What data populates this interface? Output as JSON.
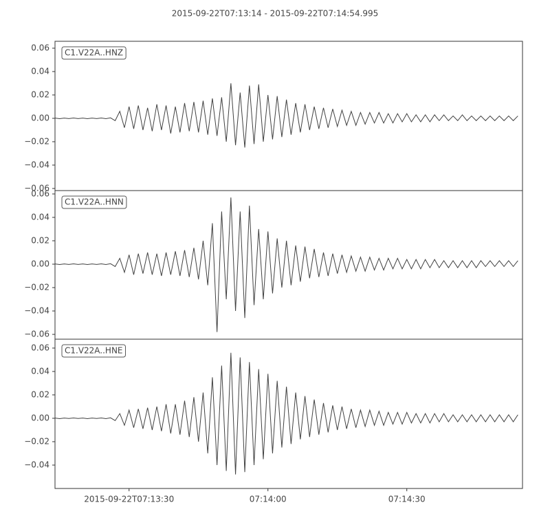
{
  "title": "2015-09-22T07:13:14  -  2015-09-22T07:14:54.995",
  "chart_data": [
    {
      "type": "line",
      "legend": "upper left",
      "x": [
        0,
        1,
        2,
        3,
        4,
        5,
        6,
        7,
        8,
        9,
        10,
        11,
        12,
        13,
        14,
        15,
        16,
        17,
        18,
        19,
        20,
        21,
        22,
        23,
        24,
        25,
        26,
        27,
        28,
        29,
        30,
        31,
        32,
        33,
        34,
        35,
        36,
        37,
        38,
        39,
        40,
        41,
        42,
        43,
        44,
        45,
        46,
        47,
        48,
        49,
        50,
        51,
        52,
        53,
        54,
        55,
        56,
        57,
        58,
        59,
        60,
        61,
        62,
        63,
        64,
        65,
        66,
        67,
        68,
        69,
        70,
        71,
        72,
        73,
        74,
        75,
        76,
        77,
        78,
        79,
        80,
        81,
        82,
        83,
        84,
        85,
        86,
        87,
        88,
        89,
        90,
        91,
        92,
        93,
        94,
        95,
        96,
        97,
        98,
        99,
        100
      ],
      "series": [
        {
          "name": "C1.V22A..HNZ",
          "color": "#404040",
          "values": [
            0.0002,
            -0.0003,
            0.0002,
            -0.0002,
            0.0003,
            -0.0002,
            0.0002,
            -0.0003,
            0.0002,
            -0.0002,
            0.0003,
            -0.0003,
            0.0004,
            -0.002,
            0.006,
            -0.008,
            0.01,
            -0.009,
            0.011,
            -0.01,
            0.009,
            -0.011,
            0.012,
            -0.01,
            0.011,
            -0.013,
            0.01,
            -0.012,
            0.013,
            -0.011,
            0.014,
            -0.012,
            0.015,
            -0.014,
            0.017,
            -0.015,
            0.018,
            -0.02,
            0.03,
            -0.023,
            0.022,
            -0.025,
            0.028,
            -0.022,
            0.029,
            -0.02,
            0.02,
            -0.018,
            0.019,
            -0.016,
            0.016,
            -0.014,
            0.013,
            -0.012,
            0.012,
            -0.01,
            0.01,
            -0.009,
            0.009,
            -0.008,
            0.008,
            -0.007,
            0.007,
            -0.006,
            0.006,
            -0.006,
            0.005,
            -0.005,
            0.005,
            -0.004,
            0.005,
            -0.004,
            0.004,
            -0.004,
            0.004,
            -0.003,
            0.004,
            -0.003,
            0.003,
            -0.003,
            0.003,
            -0.003,
            0.003,
            -0.002,
            0.003,
            -0.002,
            0.002,
            -0.002,
            0.003,
            -0.002,
            0.002,
            -0.002,
            0.002,
            -0.002,
            0.002,
            -0.002,
            0.002,
            -0.002,
            0.002,
            -0.002,
            0.002
          ]
        }
      ],
      "xlim": [
        0,
        100.995
      ],
      "ylim": [
        -0.0618,
        0.0659
      ],
      "yticks": [
        {
          "value": -0.06,
          "label": "−0.06"
        },
        {
          "value": -0.04,
          "label": "−0.04"
        },
        {
          "value": -0.02,
          "label": "−0.02"
        },
        {
          "value": 0,
          "label": "0.00"
        },
        0.02,
        0.04,
        0.06
      ]
    },
    {
      "type": "line",
      "legend": "upper left",
      "x": [
        0,
        1,
        2,
        3,
        4,
        5,
        6,
        7,
        8,
        9,
        10,
        11,
        12,
        13,
        14,
        15,
        16,
        17,
        18,
        19,
        20,
        21,
        22,
        23,
        24,
        25,
        26,
        27,
        28,
        29,
        30,
        31,
        32,
        33,
        34,
        35,
        36,
        37,
        38,
        39,
        40,
        41,
        42,
        43,
        44,
        45,
        46,
        47,
        48,
        49,
        50,
        51,
        52,
        53,
        54,
        55,
        56,
        57,
        58,
        59,
        60,
        61,
        62,
        63,
        64,
        65,
        66,
        67,
        68,
        69,
        70,
        71,
        72,
        73,
        74,
        75,
        76,
        77,
        78,
        79,
        80,
        81,
        82,
        83,
        84,
        85,
        86,
        87,
        88,
        89,
        90,
        91,
        92,
        93,
        94,
        95,
        96,
        97,
        98,
        99,
        100
      ],
      "series": [
        {
          "name": "C1.V22A..HNN",
          "color": "#404040",
          "values": [
            0.0002,
            -0.0003,
            0.0002,
            -0.0002,
            0.0003,
            -0.0002,
            0.0002,
            -0.0003,
            0.0002,
            -0.0002,
            0.0003,
            -0.0003,
            0.0004,
            -0.002,
            0.005,
            -0.007,
            0.008,
            -0.009,
            0.009,
            -0.008,
            0.01,
            -0.009,
            0.009,
            -0.01,
            0.01,
            -0.009,
            0.011,
            -0.01,
            0.012,
            -0.011,
            0.014,
            -0.013,
            0.02,
            -0.018,
            0.035,
            -0.058,
            0.045,
            -0.03,
            0.057,
            -0.04,
            0.045,
            -0.046,
            0.05,
            -0.035,
            0.03,
            -0.03,
            0.028,
            -0.025,
            0.022,
            -0.02,
            0.02,
            -0.018,
            0.016,
            -0.015,
            0.015,
            -0.012,
            0.013,
            -0.011,
            0.01,
            -0.01,
            0.009,
            -0.008,
            0.008,
            -0.007,
            0.007,
            -0.006,
            0.006,
            -0.006,
            0.006,
            -0.005,
            0.005,
            -0.005,
            0.005,
            -0.004,
            0.005,
            -0.004,
            0.004,
            -0.004,
            0.004,
            -0.004,
            0.004,
            -0.003,
            0.004,
            -0.003,
            0.003,
            -0.003,
            0.003,
            -0.003,
            0.003,
            -0.003,
            0.003,
            -0.003,
            0.003,
            -0.002,
            0.003,
            -0.002,
            0.003,
            -0.002,
            0.003,
            -0.002,
            0.003
          ]
        }
      ],
      "xlim": [
        0,
        100.995
      ],
      "ylim": [
        -0.0641,
        0.0629
      ],
      "yticks": [
        {
          "value": -0.06,
          "label": "−0.06"
        },
        {
          "value": -0.04,
          "label": "−0.04"
        },
        {
          "value": -0.02,
          "label": "−0.02"
        },
        {
          "value": 0,
          "label": "0.00"
        },
        0.02,
        0.04,
        0.06
      ]
    },
    {
      "type": "line",
      "legend": "upper left",
      "x": [
        0,
        1,
        2,
        3,
        4,
        5,
        6,
        7,
        8,
        9,
        10,
        11,
        12,
        13,
        14,
        15,
        16,
        17,
        18,
        19,
        20,
        21,
        22,
        23,
        24,
        25,
        26,
        27,
        28,
        29,
        30,
        31,
        32,
        33,
        34,
        35,
        36,
        37,
        38,
        39,
        40,
        41,
        42,
        43,
        44,
        45,
        46,
        47,
        48,
        49,
        50,
        51,
        52,
        53,
        54,
        55,
        56,
        57,
        58,
        59,
        60,
        61,
        62,
        63,
        64,
        65,
        66,
        67,
        68,
        69,
        70,
        71,
        72,
        73,
        74,
        75,
        76,
        77,
        78,
        79,
        80,
        81,
        82,
        83,
        84,
        85,
        86,
        87,
        88,
        89,
        90,
        91,
        92,
        93,
        94,
        95,
        96,
        97,
        98,
        99,
        100
      ],
      "series": [
        {
          "name": "C1.V22A..HNE",
          "color": "#404040",
          "values": [
            0.0002,
            -0.0003,
            0.0002,
            -0.0002,
            0.0003,
            -0.0002,
            0.0002,
            -0.0003,
            0.0002,
            -0.0002,
            0.0003,
            -0.0003,
            0.0004,
            -0.002,
            0.004,
            -0.006,
            0.007,
            -0.008,
            0.008,
            -0.009,
            0.009,
            -0.01,
            0.01,
            -0.011,
            0.012,
            -0.013,
            0.012,
            -0.014,
            0.015,
            -0.016,
            0.018,
            -0.02,
            0.022,
            -0.03,
            0.035,
            -0.04,
            0.045,
            -0.045,
            0.056,
            -0.048,
            0.052,
            -0.046,
            0.048,
            -0.04,
            0.042,
            -0.035,
            0.038,
            -0.03,
            0.032,
            -0.025,
            0.027,
            -0.022,
            0.022,
            -0.018,
            0.019,
            -0.016,
            0.016,
            -0.014,
            0.013,
            -0.012,
            0.011,
            -0.01,
            0.01,
            -0.009,
            0.008,
            -0.008,
            0.007,
            -0.007,
            0.007,
            -0.006,
            0.006,
            -0.006,
            0.005,
            -0.005,
            0.005,
            -0.005,
            0.005,
            -0.004,
            0.004,
            -0.004,
            0.004,
            -0.004,
            0.004,
            -0.003,
            0.004,
            -0.003,
            0.003,
            -0.003,
            0.003,
            -0.003,
            0.003,
            -0.003,
            0.003,
            -0.003,
            0.003,
            -0.003,
            0.003,
            -0.003,
            0.003,
            -0.003,
            0.003
          ]
        }
      ],
      "xlim": [
        0,
        100.995
      ],
      "ylim": [
        -0.06,
        0.0676
      ],
      "yticks": [
        {
          "value": -0.04,
          "label": "−0.04"
        },
        {
          "value": -0.02,
          "label": "−0.02"
        },
        {
          "value": 0,
          "label": "0.00"
        },
        0.02,
        0.04,
        0.06
      ],
      "xticks": [
        {
          "value": 16,
          "label": "2015-09-22T07:13:30"
        },
        {
          "value": 46,
          "label": "07:14:00"
        },
        {
          "value": 76,
          "label": "07:14:30"
        }
      ]
    }
  ]
}
